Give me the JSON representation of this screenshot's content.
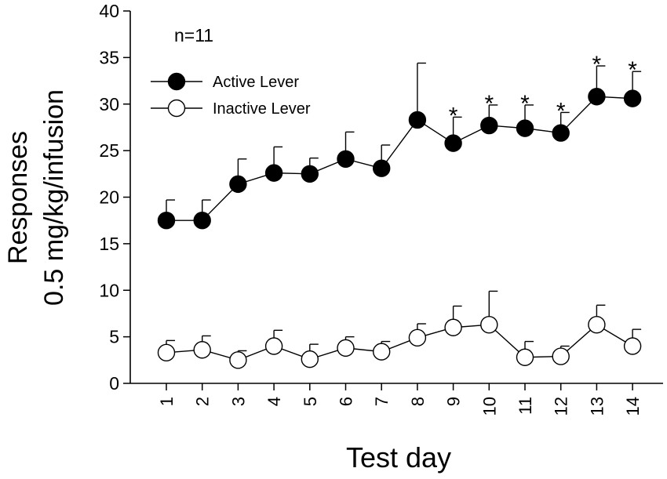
{
  "chart_data": {
    "type": "line",
    "xlabel": "Test day",
    "ylabel_lines": [
      "Responses",
      "0.5 mg/kg/infusion"
    ],
    "ylim": [
      0,
      40
    ],
    "yticks": [
      0,
      5,
      10,
      15,
      20,
      25,
      30,
      35,
      40
    ],
    "x": [
      1,
      2,
      3,
      4,
      5,
      6,
      7,
      8,
      9,
      10,
      11,
      12,
      13,
      14
    ],
    "annotation": "n=11",
    "legend_position": "top-left",
    "significance_marker": "*",
    "significant_days": [
      9,
      10,
      11,
      12,
      13,
      14
    ],
    "series": [
      {
        "name": "Active Lever",
        "marker": "filled-circle",
        "color": "#000000",
        "values": [
          17.5,
          17.5,
          21.4,
          22.6,
          22.5,
          24.1,
          23.1,
          28.3,
          25.8,
          27.7,
          27.4,
          26.9,
          30.8,
          30.6
        ],
        "errors": [
          2.2,
          2.2,
          2.7,
          2.8,
          1.7,
          2.9,
          2.5,
          6.1,
          2.8,
          2.2,
          2.5,
          2.2,
          3.3,
          2.9
        ]
      },
      {
        "name": "Inactive Lever",
        "marker": "open-circle",
        "color": "#ffffff",
        "values": [
          3.3,
          3.6,
          2.5,
          4.0,
          2.6,
          3.8,
          3.4,
          4.9,
          6.0,
          6.3,
          2.8,
          2.9,
          6.3,
          4.0
        ],
        "errors": [
          1.3,
          1.5,
          1.0,
          1.7,
          1.6,
          1.2,
          1.1,
          1.5,
          2.3,
          3.6,
          1.7,
          1.1,
          2.1,
          1.8
        ]
      }
    ]
  }
}
